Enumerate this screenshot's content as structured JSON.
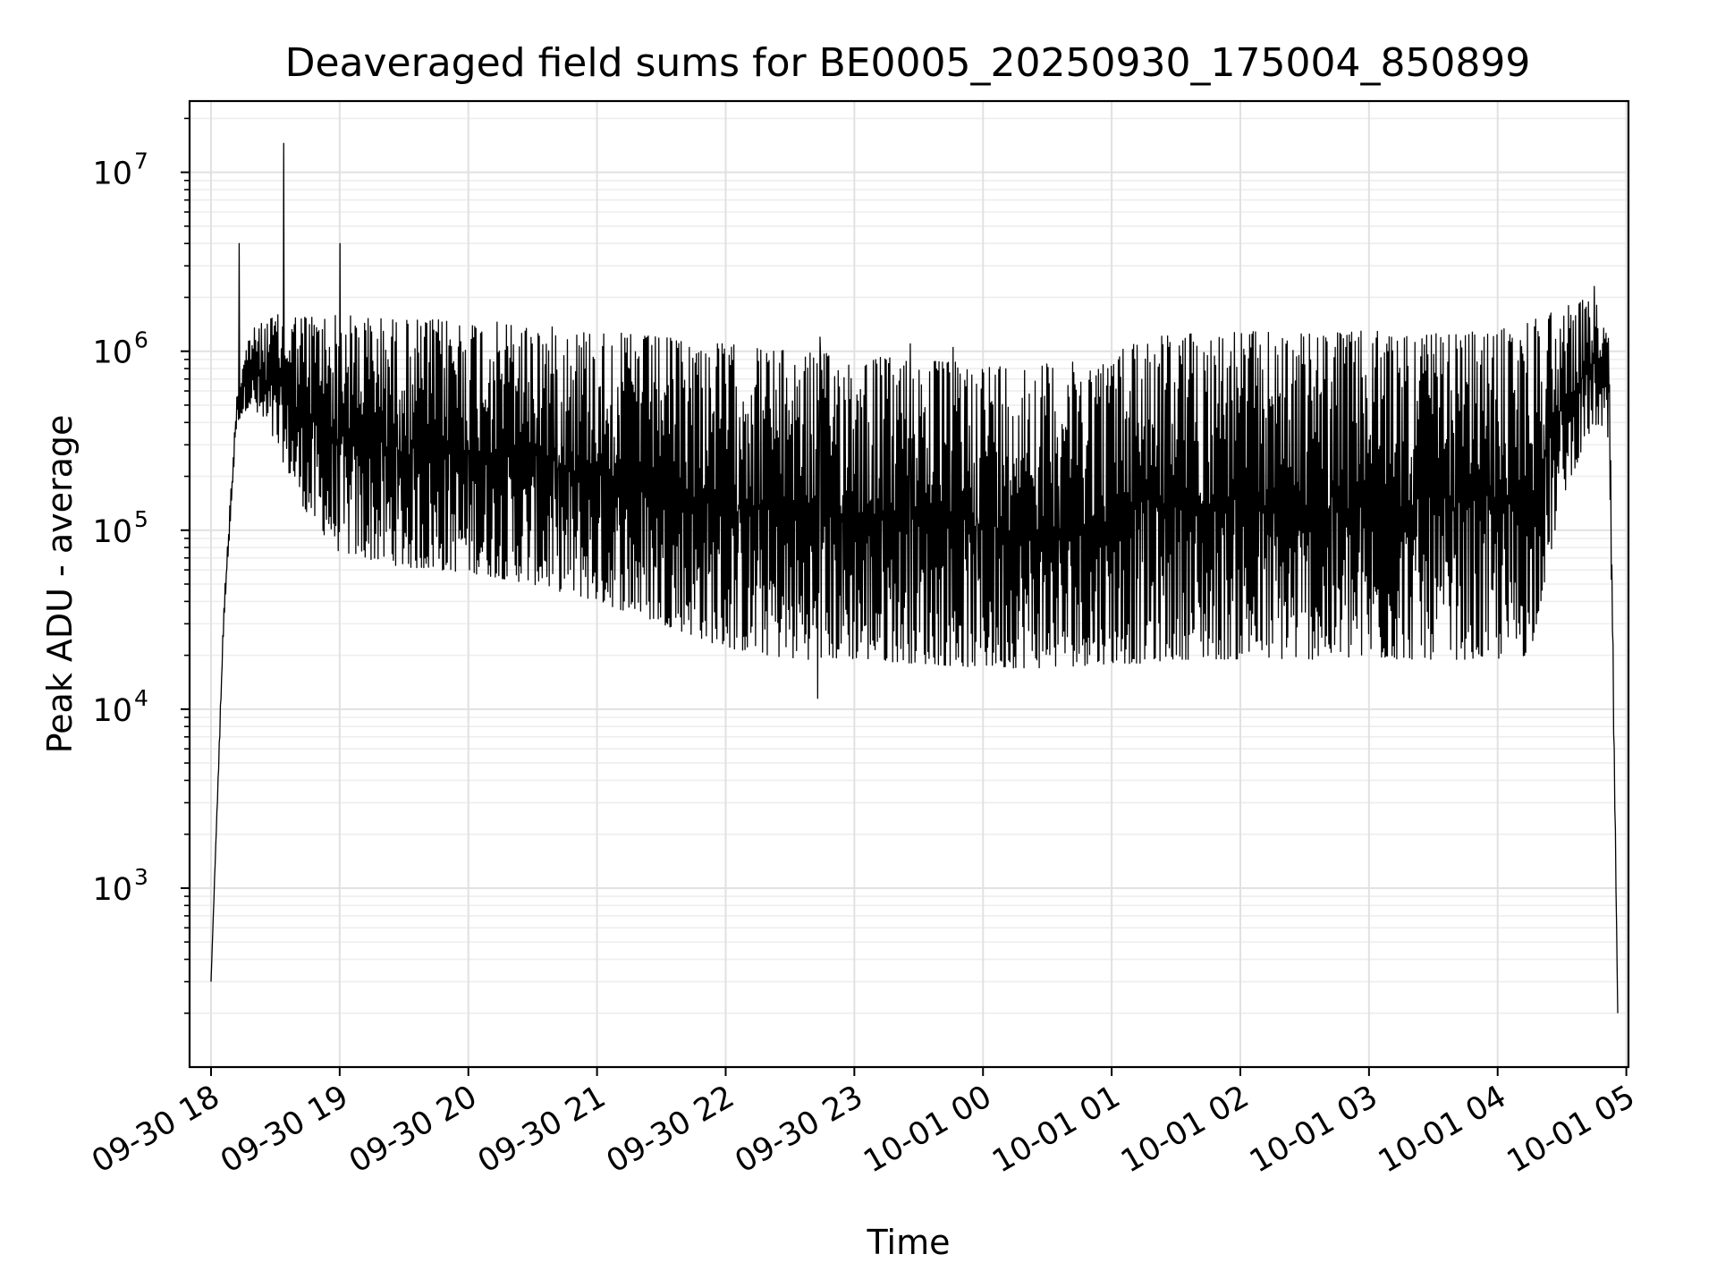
{
  "chart_data": {
    "type": "line",
    "title": "Deaveraged field sums for BE0005_20250930_175004_850899",
    "xlabel": "Time",
    "ylabel": "Peak ADU - average",
    "yscale": "log",
    "ylim": [
      100,
      25000000
    ],
    "xlim": [
      "2025-09-30 17:50",
      "2025-10-01 05:01"
    ],
    "grid": true,
    "line_color": "#000000",
    "x_ticks": [
      {
        "t": "2025-09-30 18:00",
        "label": "09-30 18"
      },
      {
        "t": "2025-09-30 19:00",
        "label": "09-30 19"
      },
      {
        "t": "2025-09-30 20:00",
        "label": "09-30 20"
      },
      {
        "t": "2025-09-30 21:00",
        "label": "09-30 21"
      },
      {
        "t": "2025-09-30 22:00",
        "label": "09-30 22"
      },
      {
        "t": "2025-09-30 23:00",
        "label": "09-30 23"
      },
      {
        "t": "2025-10-01 00:00",
        "label": "10-01 00"
      },
      {
        "t": "2025-10-01 01:00",
        "label": "10-01 01"
      },
      {
        "t": "2025-10-01 02:00",
        "label": "10-01 02"
      },
      {
        "t": "2025-10-01 03:00",
        "label": "10-01 03"
      },
      {
        "t": "2025-10-01 04:00",
        "label": "10-01 04"
      },
      {
        "t": "2025-10-01 05:00",
        "label": "10-01 05"
      }
    ],
    "y_ticks": [
      {
        "value": 1000,
        "base": "10",
        "exp": "3"
      },
      {
        "value": 10000,
        "base": "10",
        "exp": "4"
      },
      {
        "value": 100000,
        "base": "10",
        "exp": "5"
      },
      {
        "value": 1000000,
        "base": "10",
        "exp": "6"
      },
      {
        "value": 10000000,
        "base": "10",
        "exp": "7"
      }
    ],
    "series": [
      {
        "envelope": {
          "x": [
            "2025-09-30 18:00",
            "2025-09-30 18:06",
            "2025-09-30 18:12",
            "2025-09-30 18:18",
            "2025-09-30 18:30",
            "2025-09-30 18:45",
            "2025-09-30 19:00",
            "2025-09-30 19:30",
            "2025-09-30 20:00",
            "2025-09-30 20:30",
            "2025-09-30 21:00",
            "2025-09-30 21:30",
            "2025-09-30 22:00",
            "2025-09-30 22:30",
            "2025-09-30 23:00",
            "2025-09-30 23:30",
            "2025-10-01 00:00",
            "2025-10-01 00:30",
            "2025-10-01 01:00",
            "2025-10-01 01:12",
            "2025-10-01 01:30",
            "2025-10-01 02:00",
            "2025-10-01 02:30",
            "2025-10-01 03:00",
            "2025-10-01 03:30",
            "2025-10-01 04:00",
            "2025-10-01 04:15",
            "2025-10-01 04:30",
            "2025-10-01 04:45",
            "2025-10-01 04:52",
            "2025-10-01 04:56"
          ],
          "low": [
            300,
            30000,
            400000,
            500000,
            300000,
            120000,
            75000,
            62000,
            58000,
            50000,
            40000,
            30000,
            22000,
            19000,
            19000,
            18000,
            17000,
            17000,
            18000,
            18000,
            19000,
            19000,
            19000,
            19000,
            19000,
            19000,
            20000,
            150000,
            400000,
            300000,
            200
          ],
          "high": [
            300,
            40000,
            600000,
            1300000,
            1600000,
            1600000,
            1600000,
            1500000,
            1500000,
            1400000,
            1300000,
            1200000,
            1100000,
            1000000,
            950000,
            900000,
            850000,
            850000,
            900000,
            1250000,
            1250000,
            1300000,
            1250000,
            1300000,
            1250000,
            1300000,
            1500000,
            1800000,
            2000000,
            1200000,
            200
          ]
        },
        "spikes": [
          {
            "t": "2025-09-30 18:13",
            "value": 4000000
          },
          {
            "t": "2025-09-30 18:34",
            "value": 14500000
          },
          {
            "t": "2025-09-30 19:00",
            "value": 4000000
          },
          {
            "t": "2025-09-30 22:44",
            "value": 1200000
          },
          {
            "t": "2025-09-30 23:26",
            "value": 1100000
          },
          {
            "t": "2025-09-30 23:46",
            "value": 1050000
          },
          {
            "t": "2025-10-01 04:45",
            "value": 2300000
          }
        ],
        "min_dip": {
          "t": "2025-09-30 22:43",
          "value": 11500
        }
      }
    ]
  }
}
